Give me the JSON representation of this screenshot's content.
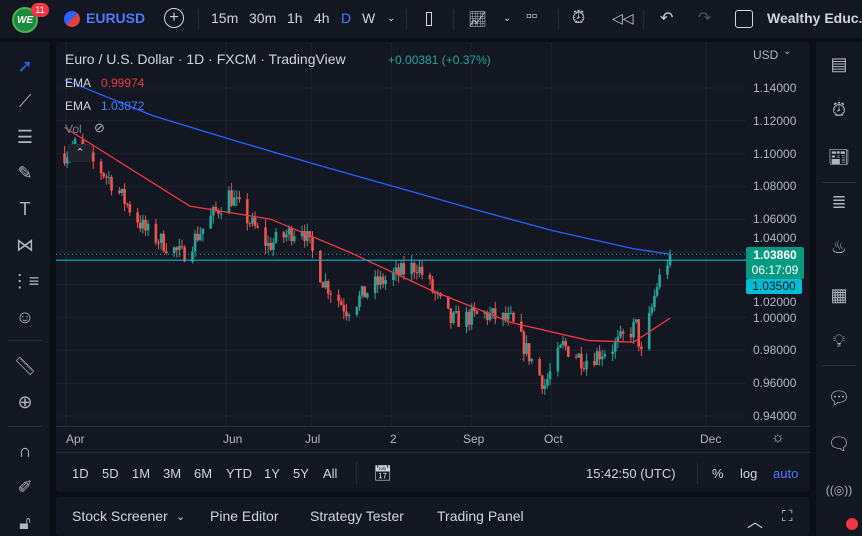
{
  "topbar": {
    "notifications": "11",
    "logo_text": "WE",
    "symbol": "EURUSD",
    "intervals": [
      "15m",
      "30m",
      "1h",
      "4h",
      "D",
      "W"
    ],
    "active_interval": "D",
    "layout_name": "Wealthy Educ..."
  },
  "legend": {
    "title": "Euro / U.S. Dollar · 1D · FXCM · TradingView",
    "change": "+0.00381 (+0.37%)",
    "ema1": {
      "label": "EMA",
      "value": "0.99974",
      "color": "#f23645"
    },
    "ema2": {
      "label": "EMA",
      "value": "1.03872",
      "color": "#2962ff"
    },
    "vol_label": "Vol"
  },
  "price_axis": {
    "currency": "USD",
    "ticks": [
      "1.14000",
      "1.12000",
      "1.10000",
      "1.08000",
      "1.06000",
      "1.04000",
      "1.02000",
      "1.00000",
      "0.98000",
      "0.96000",
      "0.94000"
    ],
    "last_price": "1.03860",
    "countdown": "06:17:09",
    "line_price": "1.03500"
  },
  "time_axis": {
    "labels": [
      "Apr",
      "Jun",
      "Jul",
      "2",
      "Sep",
      "Oct",
      "Dec"
    ]
  },
  "range_bar": {
    "ranges": [
      "1D",
      "5D",
      "1M",
      "3M",
      "6M",
      "YTD",
      "1Y",
      "5Y",
      "All"
    ],
    "clock": "15:42:50 (UTC)",
    "percent": "%",
    "log": "log",
    "auto": "auto"
  },
  "bottom_panel": {
    "tabs": [
      "Stock Screener",
      "Pine Editor",
      "Strategy Tester",
      "Trading Panel"
    ]
  },
  "colors": {
    "up": "#26a69a",
    "down": "#ef5350",
    "ema_fast": "#f23645",
    "ema_slow": "#2962ff",
    "hline": "#00bcd4",
    "accent": "#2962ff"
  },
  "chart_data": {
    "type": "candlestick",
    "ylim": [
      0.93,
      1.15
    ],
    "yticks": [
      1.14,
      1.12,
      1.1,
      1.08,
      1.06,
      1.04,
      1.02,
      1.0,
      0.98,
      0.96,
      0.94
    ],
    "close_path": [
      [
        "2022-03-28",
        1.1
      ],
      [
        "2022-04-01",
        1.105
      ],
      [
        "2022-04-14",
        1.085
      ],
      [
        "2022-04-28",
        1.053
      ],
      [
        "2022-05-12",
        1.038
      ],
      [
        "2022-05-30",
        1.075
      ],
      [
        "2022-06-14",
        1.044
      ],
      [
        "2022-06-27",
        1.056
      ],
      [
        "2022-07-05",
        1.023
      ],
      [
        "2022-07-14",
        1.005
      ],
      [
        "2022-07-25",
        1.02
      ],
      [
        "2022-08-10",
        1.032
      ],
      [
        "2022-08-23",
        0.998
      ],
      [
        "2022-09-05",
        1.002
      ],
      [
        "2022-09-15",
        0.998
      ],
      [
        "2022-09-28",
        0.959
      ],
      [
        "2022-10-05",
        0.983
      ],
      [
        "2022-10-13",
        0.974
      ],
      [
        "2022-10-25",
        0.983
      ],
      [
        "2022-11-02",
        0.995
      ],
      [
        "2022-11-04",
        0.977
      ],
      [
        "2022-11-10",
        1.02
      ],
      [
        "2022-11-15",
        1.0386
      ]
    ],
    "ema_fast": [
      [
        "2022-03-28",
        1.116
      ],
      [
        "2022-04-15",
        1.098
      ],
      [
        "2022-05-15",
        1.068
      ],
      [
        "2022-06-15",
        1.06
      ],
      [
        "2022-07-15",
        1.04
      ],
      [
        "2022-08-15",
        1.017
      ],
      [
        "2022-09-15",
        0.997
      ],
      [
        "2022-10-15",
        0.986
      ],
      [
        "2022-11-01",
        0.985
      ],
      [
        "2022-11-15",
        0.9997
      ]
    ],
    "ema_slow": [
      [
        "2022-03-28",
        1.145
      ],
      [
        "2022-05-01",
        1.123
      ],
      [
        "2022-06-01",
        1.108
      ],
      [
        "2022-07-01",
        1.094
      ],
      [
        "2022-08-01",
        1.08
      ],
      [
        "2022-09-01",
        1.066
      ],
      [
        "2022-10-01",
        1.053
      ],
      [
        "2022-11-01",
        1.042
      ],
      [
        "2022-11-15",
        1.0387
      ]
    ],
    "hline": 1.035
  }
}
